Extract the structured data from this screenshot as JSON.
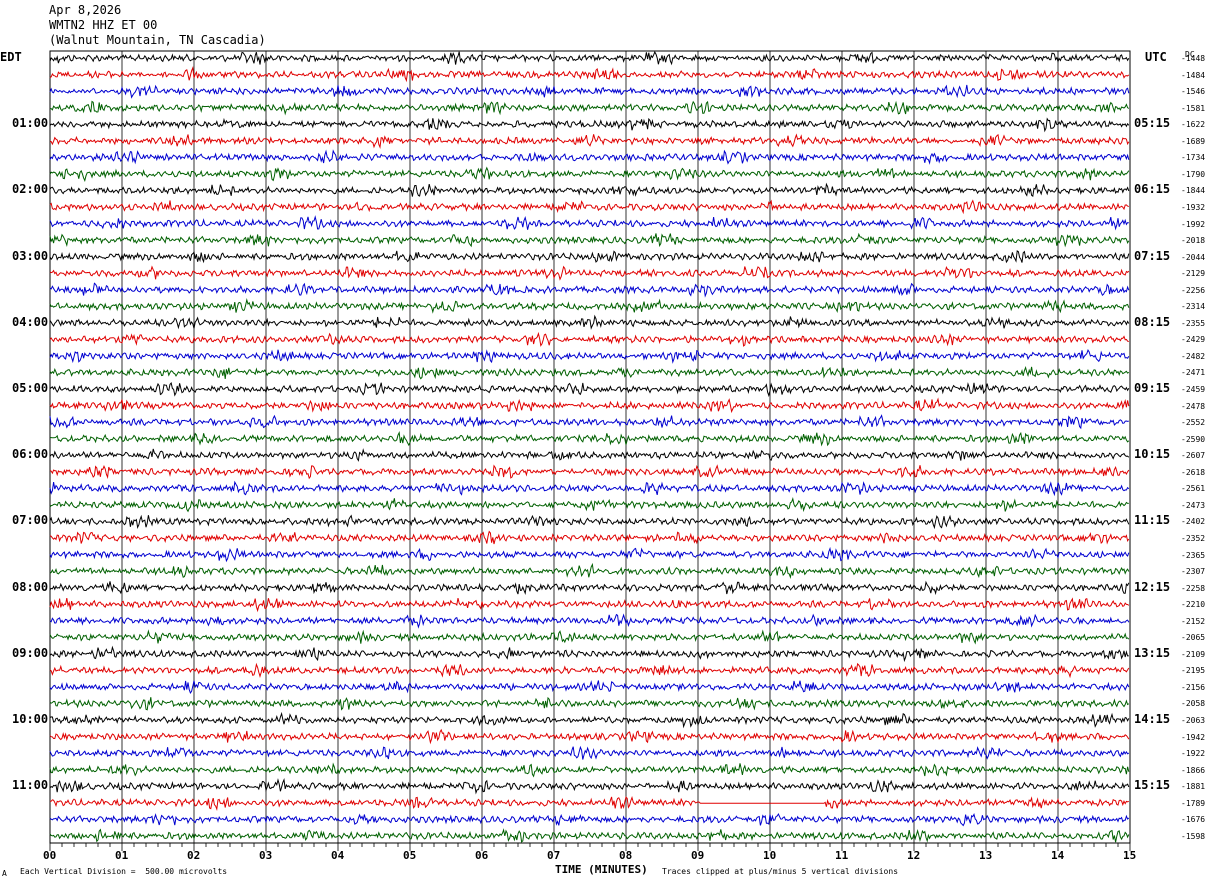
{
  "header": {
    "date": "Apr 8,2026",
    "channel": "WMTN2 HHZ ET 00",
    "station": "(Walnut Mountain, TN Cascadia)"
  },
  "left_tz": "EDT",
  "right_tz": "UTC",
  "dc_header": "DC",
  "footer": {
    "scale_note": "Each Vertical Division =  500.00 microvolts",
    "xlabel": "TIME (MINUTES)",
    "clip_note": "Traces clipped at plus/minus 5 vertical divisions",
    "corner_mark": "A"
  },
  "colors": {
    "cycle": [
      "#000000",
      "#e00000",
      "#0000d0",
      "#006000"
    ],
    "grid": "#000000"
  },
  "chart_data": {
    "type": "line",
    "title": "WMTN2 HHZ ET 00",
    "xlabel": "TIME (MINUTES)",
    "ylabel": "",
    "xlim": [
      0,
      15
    ],
    "x_ticks": [
      "00",
      "01",
      "02",
      "03",
      "04",
      "05",
      "06",
      "07",
      "08",
      "09",
      "10",
      "11",
      "12",
      "13",
      "14",
      "15"
    ],
    "rows_per_hour": 4,
    "left_labels": [
      "01:00",
      "02:00",
      "03:00",
      "04:00",
      "05:00",
      "06:00",
      "07:00",
      "08:00",
      "09:00",
      "10:00",
      "11:00"
    ],
    "right_labels": [
      "05:15",
      "06:15",
      "07:15",
      "08:15",
      "09:15",
      "10:15",
      "11:15",
      "12:15",
      "13:15",
      "14:15",
      "15:15"
    ],
    "dc_offsets": [
      -1448,
      -1484,
      -1546,
      -1581,
      -1622,
      -1689,
      -1734,
      -1790,
      -1844,
      -1932,
      -1992,
      -2018,
      -2044,
      -2129,
      -2256,
      -2314,
      -2355,
      -2429,
      -2482,
      -2471,
      -2459,
      -2478,
      -2552,
      -2590,
      -2607,
      -2618,
      -2561,
      -2473,
      -2402,
      -2352,
      -2365,
      -2307,
      -2258,
      -2210,
      -2152,
      -2065,
      -2109,
      -2195,
      -2156,
      -2058,
      -2063,
      -1942,
      -1922,
      -1866,
      -1881,
      -1789,
      -1676,
      -1598
    ]
  }
}
